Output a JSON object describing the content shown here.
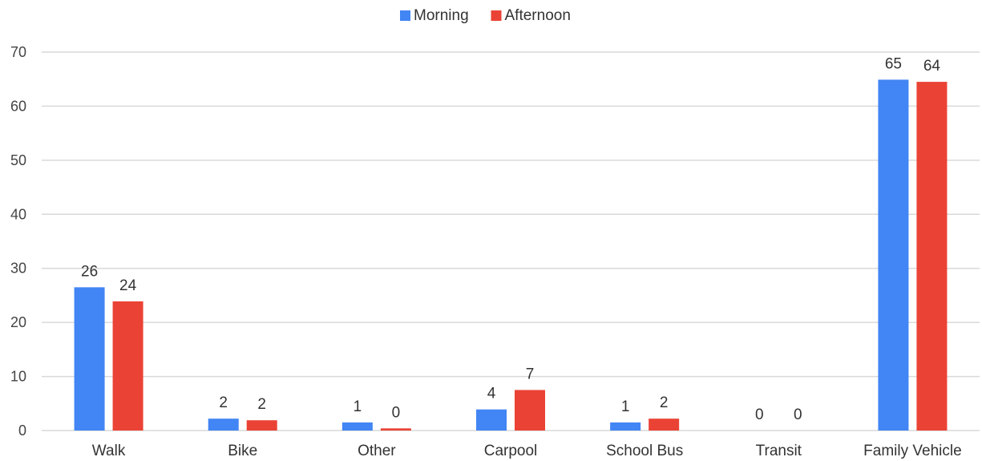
{
  "chart_data": {
    "type": "bar",
    "categories": [
      "Walk",
      "Bike",
      "Other",
      "Carpool",
      "School Bus",
      "Transit",
      "Family Vehicle"
    ],
    "series": [
      {
        "name": "Morning",
        "color": "#4285f4",
        "values": [
          26.5,
          2.2,
          1.5,
          3.9,
          1.5,
          0,
          64.9
        ],
        "labels": [
          "26",
          "2",
          "1",
          "4",
          "1",
          "0",
          "65"
        ]
      },
      {
        "name": "Afternoon",
        "color": "#ea4335",
        "values": [
          23.9,
          1.9,
          0.4,
          7.5,
          2.2,
          0,
          64.5
        ],
        "labels": [
          "24",
          "2",
          "0",
          "7",
          "2",
          "0",
          "64"
        ]
      }
    ],
    "yticks": [
      "0",
      "10",
      "20",
      "30",
      "40",
      "50",
      "60",
      "70"
    ],
    "ylim": [
      0,
      70
    ],
    "grid": true,
    "legend_position": "top-center"
  }
}
